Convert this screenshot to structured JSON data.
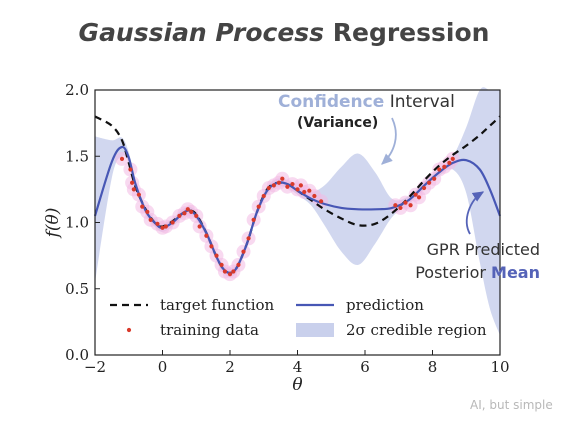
{
  "title": {
    "italic": "Gaussian Process",
    "rest": "Regression"
  },
  "annotations": {
    "confidence_word": "Confidence",
    "interval_word": "Interval",
    "variance": "(Variance)",
    "gpr_line1": "GPR Predicted",
    "gpr_line2_prefix": "Posterior",
    "gpr_line2_highlight": "Mean"
  },
  "watermark": "AI, but simple",
  "colors": {
    "target": "#111111",
    "prediction": "#4757b5",
    "band": "#c9d0ec",
    "training_points": "#d93a2b",
    "point_halo": "#f3b9e4",
    "highlight_light": "#9fb0d8",
    "highlight_dark": "#5563b8"
  },
  "chart_data": {
    "type": "line",
    "xlabel": "θ",
    "ylabel": "f(θ)",
    "xlim": [
      -2,
      10
    ],
    "ylim": [
      0.0,
      2.0
    ],
    "xticks": [
      "−2",
      "0",
      "2",
      "4",
      "6",
      "8",
      "10"
    ],
    "yticks": [
      "0.0",
      "0.5",
      "1.0",
      "1.5",
      "2.0"
    ],
    "legend": [
      "target function",
      "prediction",
      "training data",
      "2σ credible region"
    ],
    "x": [
      -2.0,
      -1.5,
      -1.2,
      -1.0,
      -0.8,
      -0.5,
      -0.2,
      0.0,
      0.3,
      0.6,
      0.8,
      1.0,
      1.3,
      1.6,
      1.8,
      2.0,
      2.2,
      2.5,
      2.8,
      3.1,
      3.4,
      3.7,
      4.0,
      4.4,
      4.8,
      5.3,
      5.8,
      6.3,
      6.8,
      7.3,
      7.8,
      8.2,
      8.6,
      9.0,
      9.4,
      9.7,
      10.0
    ],
    "target_function": [
      1.8,
      1.73,
      1.62,
      1.45,
      1.27,
      1.1,
      0.99,
      0.97,
      1.01,
      1.07,
      1.09,
      1.06,
      0.92,
      0.74,
      0.65,
      0.62,
      0.66,
      0.84,
      1.08,
      1.25,
      1.3,
      1.29,
      1.24,
      1.17,
      1.1,
      1.03,
      0.98,
      0.99,
      1.07,
      1.19,
      1.33,
      1.43,
      1.51,
      1.58,
      1.66,
      1.73,
      1.8
    ],
    "prediction": [
      1.05,
      1.46,
      1.57,
      1.49,
      1.29,
      1.09,
      0.99,
      0.96,
      1.0,
      1.07,
      1.09,
      1.05,
      0.92,
      0.74,
      0.65,
      0.62,
      0.66,
      0.84,
      1.08,
      1.24,
      1.3,
      1.29,
      1.24,
      1.18,
      1.14,
      1.11,
      1.1,
      1.1,
      1.11,
      1.17,
      1.29,
      1.38,
      1.45,
      1.47,
      1.4,
      1.25,
      1.05
    ],
    "band_lower": [
      0.55,
      1.34,
      1.5,
      1.45,
      1.26,
      1.06,
      0.96,
      0.93,
      0.97,
      1.04,
      1.06,
      1.02,
      0.89,
      0.71,
      0.62,
      0.59,
      0.63,
      0.81,
      1.05,
      1.21,
      1.27,
      1.26,
      1.21,
      1.13,
      0.98,
      0.78,
      0.68,
      0.84,
      1.04,
      1.14,
      1.26,
      1.35,
      1.4,
      1.22,
      0.7,
      0.35,
      0.15
    ],
    "band_upper": [
      1.65,
      1.62,
      1.64,
      1.53,
      1.32,
      1.12,
      1.02,
      0.99,
      1.03,
      1.1,
      1.12,
      1.08,
      0.95,
      0.77,
      0.68,
      0.65,
      0.69,
      0.87,
      1.11,
      1.27,
      1.33,
      1.32,
      1.27,
      1.23,
      1.28,
      1.42,
      1.52,
      1.38,
      1.18,
      1.2,
      1.32,
      1.41,
      1.5,
      1.72,
      2.0,
      2.0,
      2.0
    ],
    "training_data": [
      [
        -1.2,
        1.48
      ],
      [
        -0.95,
        1.4
      ],
      [
        -0.9,
        1.3
      ],
      [
        -0.85,
        1.25
      ],
      [
        -0.7,
        1.21
      ],
      [
        -0.6,
        1.12
      ],
      [
        -0.45,
        1.08
      ],
      [
        -0.35,
        1.02
      ],
      [
        -0.15,
        0.99
      ],
      [
        0.0,
        0.96
      ],
      [
        0.1,
        0.97
      ],
      [
        0.3,
        1.0
      ],
      [
        0.5,
        1.05
      ],
      [
        0.65,
        1.07
      ],
      [
        0.75,
        1.1
      ],
      [
        0.85,
        1.08
      ],
      [
        1.0,
        1.05
      ],
      [
        1.1,
        0.97
      ],
      [
        1.3,
        0.9
      ],
      [
        1.45,
        0.82
      ],
      [
        1.6,
        0.75
      ],
      [
        1.75,
        0.68
      ],
      [
        1.85,
        0.63
      ],
      [
        2.0,
        0.61
      ],
      [
        2.1,
        0.63
      ],
      [
        2.25,
        0.68
      ],
      [
        2.4,
        0.78
      ],
      [
        2.55,
        0.88
      ],
      [
        2.7,
        1.02
      ],
      [
        2.85,
        1.12
      ],
      [
        3.0,
        1.2
      ],
      [
        3.15,
        1.26
      ],
      [
        3.3,
        1.28
      ],
      [
        3.45,
        1.3
      ],
      [
        3.55,
        1.33
      ],
      [
        3.7,
        1.27
      ],
      [
        3.85,
        1.29
      ],
      [
        4.0,
        1.25
      ],
      [
        4.1,
        1.28
      ],
      [
        4.2,
        1.23
      ],
      [
        4.35,
        1.24
      ],
      [
        4.5,
        1.2
      ],
      [
        4.7,
        1.16
      ],
      [
        6.9,
        1.13
      ],
      [
        7.05,
        1.11
      ],
      [
        7.2,
        1.15
      ],
      [
        7.35,
        1.13
      ],
      [
        7.5,
        1.21
      ],
      [
        7.6,
        1.19
      ],
      [
        7.75,
        1.26
      ],
      [
        7.9,
        1.3
      ],
      [
        8.05,
        1.33
      ],
      [
        8.2,
        1.4
      ],
      [
        8.35,
        1.42
      ],
      [
        8.5,
        1.45
      ],
      [
        8.6,
        1.48
      ]
    ]
  }
}
